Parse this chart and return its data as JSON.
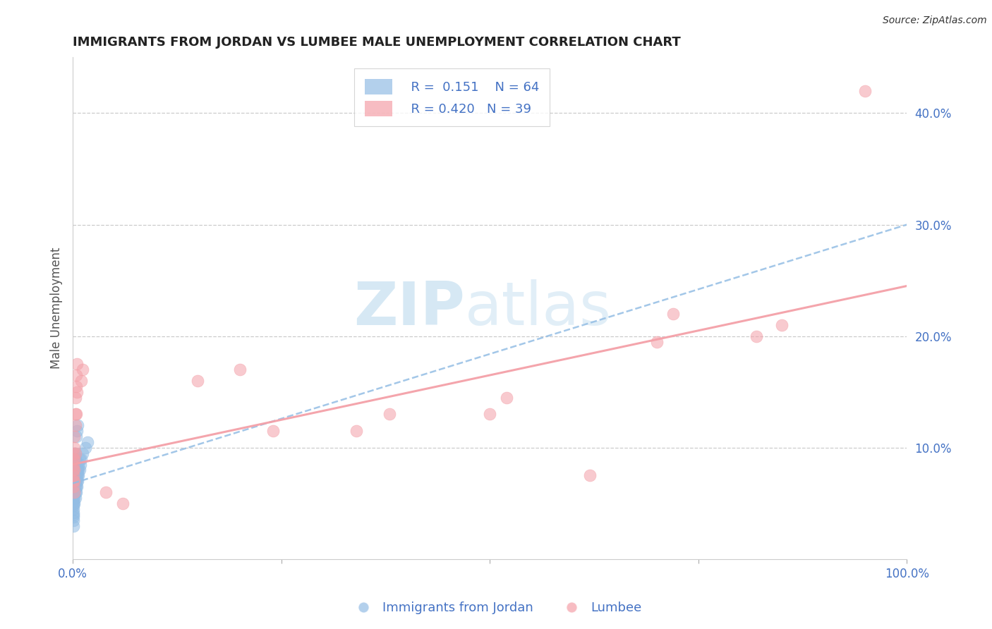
{
  "title": "IMMIGRANTS FROM JORDAN VS LUMBEE MALE UNEMPLOYMENT CORRELATION CHART",
  "source": "Source: ZipAtlas.com",
  "ylabel": "Male Unemployment",
  "xlim": [
    0.0,
    1.0
  ],
  "ylim": [
    0.0,
    0.45
  ],
  "legend_r1": "R =  0.151",
  "legend_n1": "N = 64",
  "legend_r2": "R = 0.420",
  "legend_n2": "N = 39",
  "blue_color": "#93bde4",
  "pink_color": "#f4a0a8",
  "axis_color": "#4472c4",
  "watermark_zip": "ZIP",
  "watermark_atlas": "atlas",
  "blue_scatter_x": [
    0.001,
    0.001,
    0.001,
    0.001,
    0.001,
    0.001,
    0.001,
    0.001,
    0.001,
    0.001,
    0.001,
    0.001,
    0.001,
    0.001,
    0.001,
    0.001,
    0.001,
    0.001,
    0.001,
    0.001,
    0.002,
    0.002,
    0.002,
    0.002,
    0.002,
    0.002,
    0.002,
    0.002,
    0.002,
    0.002,
    0.003,
    0.003,
    0.003,
    0.003,
    0.003,
    0.003,
    0.003,
    0.003,
    0.003,
    0.004,
    0.004,
    0.004,
    0.004,
    0.004,
    0.004,
    0.005,
    0.005,
    0.005,
    0.005,
    0.005,
    0.006,
    0.006,
    0.006,
    0.006,
    0.007,
    0.007,
    0.007,
    0.008,
    0.008,
    0.009,
    0.01,
    0.012,
    0.015,
    0.018
  ],
  "blue_scatter_y": [
    0.04,
    0.045,
    0.05,
    0.055,
    0.06,
    0.065,
    0.07,
    0.075,
    0.08,
    0.085,
    0.03,
    0.035,
    0.038,
    0.042,
    0.048,
    0.052,
    0.058,
    0.062,
    0.068,
    0.072,
    0.05,
    0.055,
    0.06,
    0.065,
    0.07,
    0.075,
    0.08,
    0.085,
    0.09,
    0.095,
    0.055,
    0.06,
    0.065,
    0.07,
    0.075,
    0.08,
    0.085,
    0.09,
    0.095,
    0.06,
    0.065,
    0.07,
    0.075,
    0.08,
    0.11,
    0.065,
    0.07,
    0.075,
    0.08,
    0.115,
    0.07,
    0.075,
    0.08,
    0.12,
    0.075,
    0.08,
    0.085,
    0.08,
    0.09,
    0.085,
    0.09,
    0.095,
    0.1,
    0.105
  ],
  "pink_scatter_x": [
    0.001,
    0.001,
    0.001,
    0.001,
    0.001,
    0.001,
    0.001,
    0.002,
    0.002,
    0.002,
    0.002,
    0.002,
    0.002,
    0.003,
    0.003,
    0.003,
    0.003,
    0.004,
    0.004,
    0.004,
    0.005,
    0.005,
    0.01,
    0.012,
    0.04,
    0.06,
    0.15,
    0.2,
    0.24,
    0.34,
    0.38,
    0.5,
    0.52,
    0.62,
    0.7,
    0.72,
    0.82,
    0.85,
    0.95
  ],
  "pink_scatter_y": [
    0.065,
    0.07,
    0.075,
    0.08,
    0.085,
    0.09,
    0.095,
    0.06,
    0.07,
    0.08,
    0.09,
    0.1,
    0.11,
    0.095,
    0.12,
    0.13,
    0.145,
    0.13,
    0.155,
    0.165,
    0.15,
    0.175,
    0.16,
    0.17,
    0.06,
    0.05,
    0.16,
    0.17,
    0.115,
    0.115,
    0.13,
    0.13,
    0.145,
    0.075,
    0.195,
    0.22,
    0.2,
    0.21,
    0.42
  ],
  "blue_line_x": [
    0.0,
    1.0
  ],
  "blue_line_y": [
    0.068,
    0.3
  ],
  "pink_line_x": [
    0.0,
    1.0
  ],
  "pink_line_y": [
    0.085,
    0.245
  ],
  "ytick_vals": [
    0.1,
    0.2,
    0.3,
    0.4
  ],
  "ytick_labels": [
    "10.0%",
    "20.0%",
    "30.0%",
    "40.0%"
  ]
}
